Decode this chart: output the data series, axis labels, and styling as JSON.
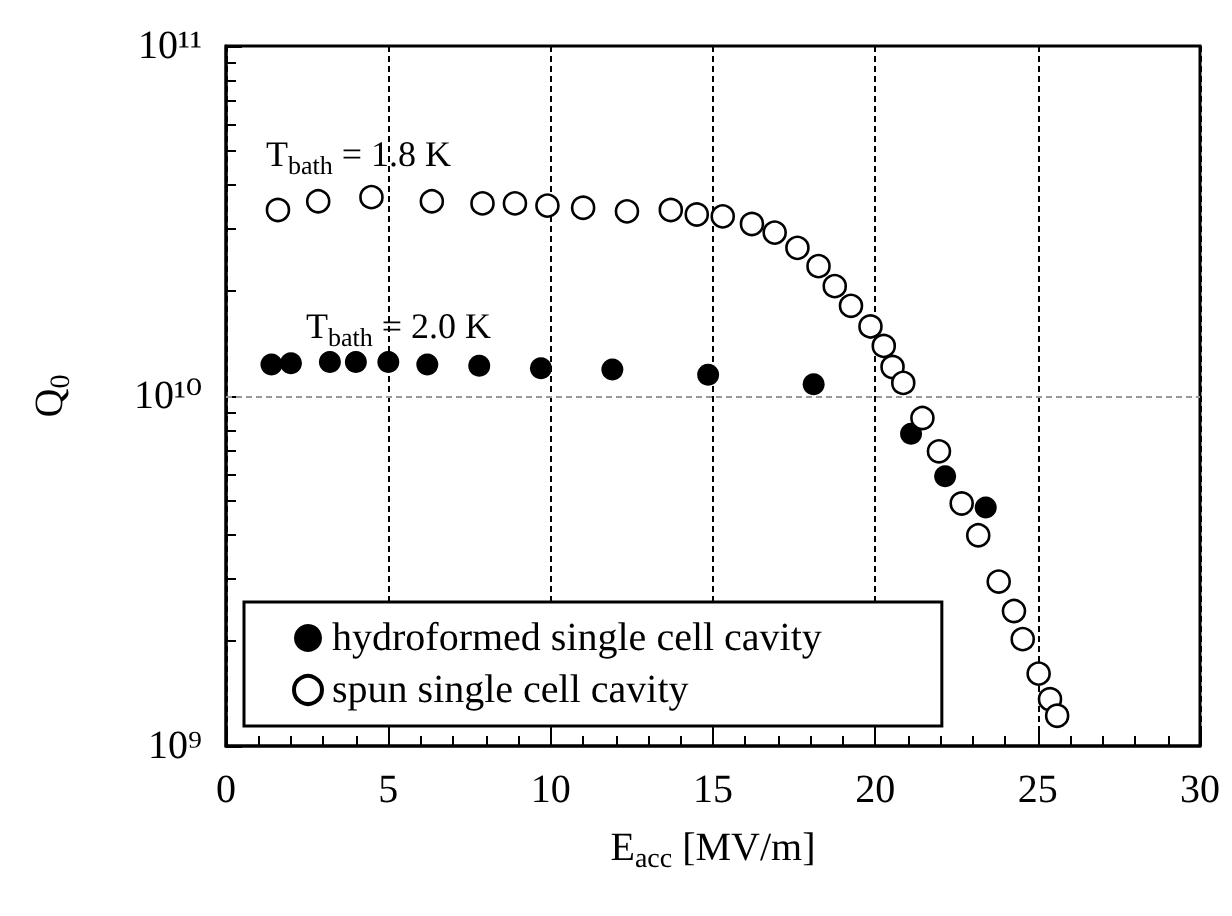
{
  "chart_data": {
    "type": "scatter",
    "xlabel": "E$_{acc}$ [MV/m]",
    "ylabel": "Q$_{0}$",
    "log": "y",
    "grid": "x",
    "ref_lines": [
      {
        "axis": "y",
        "value": 10000000000.0,
        "color": "#999999",
        "line_style": "dashed"
      }
    ],
    "legend": "bottom left",
    "marker": "circle",
    "xlim": [
      0,
      30
    ],
    "xticks": [
      0,
      5,
      10,
      15,
      20,
      25,
      30
    ],
    "ylim": [
      1000000000.0,
      100000000000.0
    ],
    "yticks": [
      {
        "value": 1000000000.0,
        "label": "10⁹"
      },
      {
        "value": 10000000000.0,
        "label": "10¹⁰"
      },
      {
        "value": 100000000000.0,
        "label": "10¹¹"
      }
    ],
    "annotations": [
      "T$_{bath}$ = 1.8 K",
      "T$_{bath}$ = 2.0 K"
    ],
    "series": [
      {
        "name": "hydroformed single cell cavity",
        "color": "#000000",
        "x": [
          1.4,
          2.0,
          3.2,
          4.0,
          5.0,
          6.2,
          7.8,
          9.7,
          11.9,
          14.85,
          18.1,
          21.1,
          22.15,
          23.4
        ],
        "values": [
          12300000000.0,
          12400000000.0,
          12500000000.0,
          12500000000.0,
          12500000000.0,
          12300000000.0,
          12200000000.0,
          12000000000.0,
          11900000000.0,
          11500000000.0,
          10800000000.0,
          7800000000.0,
          5900000000.0,
          4800000000.0
        ]
      },
      {
        "name": "spun single cell cavity",
        "color": "#000000",
        "x": [
          1.6,
          2.84,
          4.48,
          6.34,
          7.9,
          8.9,
          9.9,
          11.0,
          12.35,
          13.7,
          14.5,
          15.3,
          16.2,
          16.9,
          17.6,
          18.25,
          18.75,
          19.25,
          19.85,
          20.26,
          20.53,
          20.86,
          21.45,
          21.96,
          22.66,
          23.17,
          23.8,
          24.27,
          24.54,
          25.03,
          25.38,
          25.6
        ],
        "values": [
          34000000000.0,
          36000000000.0,
          37000000000.0,
          36000000000.0,
          35500000000.0,
          35500000000.0,
          35000000000.0,
          34500000000.0,
          33700000000.0,
          34000000000.0,
          33000000000.0,
          32600000000.0,
          31000000000.0,
          29300000000.0,
          26500000000.0,
          23500000000.0,
          20600000000.0,
          18100000000.0,
          15800000000.0,
          13900000000.0,
          12100000000.0,
          10900000000.0,
          8650000000.0,
          6950000000.0,
          4930000000.0,
          4000000000.0,
          2950000000.0,
          2430000000.0,
          2020000000.0,
          1610000000.0,
          1360000000.0,
          1220000000.0
        ]
      }
    ]
  }
}
